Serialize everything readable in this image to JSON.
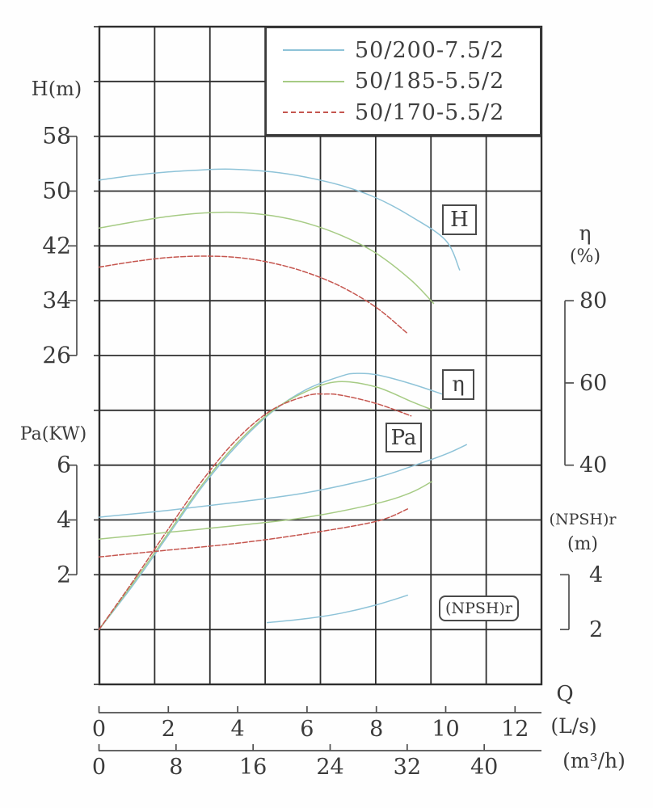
{
  "legend": {
    "items": [
      {
        "label": "50/200-7.5/2",
        "color": "#8ec3d8",
        "style": "solid"
      },
      {
        "label": "50/185-5.5/2",
        "color": "#a6cb84",
        "style": "solid"
      },
      {
        "label": "50/170-5.5/2",
        "color": "#c5564f",
        "style": "dashed"
      }
    ]
  },
  "axes": {
    "h": {
      "title": "H(m)",
      "ticks": [
        58,
        50,
        42,
        34,
        26
      ]
    },
    "pa": {
      "title": "Pa(KW)",
      "ticks": [
        6,
        4,
        2
      ]
    },
    "eta": {
      "title": "η",
      "unit": "(%)",
      "ticks": [
        80,
        60,
        40
      ]
    },
    "npsh": {
      "title": "(NPSH)r",
      "unit": "(m)",
      "ticks": [
        4,
        2
      ]
    },
    "q": {
      "title": "Q",
      "unit": "(L/s)",
      "ticks": [
        0,
        2,
        4,
        6,
        8,
        10,
        12
      ]
    },
    "q2": {
      "unit": "(m³/h)",
      "ticks": [
        0,
        8,
        16,
        24,
        32,
        40
      ]
    }
  },
  "annotations": {
    "h": "H",
    "eta": "η",
    "pa": "Pa",
    "npsh": "(NPSH)r"
  },
  "chart_data": {
    "type": "line",
    "x": {
      "label": "Q (L/s)",
      "range": [
        0,
        12.75
      ]
    },
    "secondary_x": {
      "label": "Q (m³/h)",
      "range": [
        0,
        45.9
      ]
    },
    "grid": true,
    "families": {
      "H": {
        "unit": "m",
        "axis_ticks": [
          58,
          50,
          42,
          34,
          26
        ]
      },
      "eta": {
        "unit": "%",
        "axis_ticks": [
          80,
          60,
          40
        ]
      },
      "Pa": {
        "unit": "KW",
        "axis_ticks": [
          6,
          4,
          2
        ]
      },
      "npsh": {
        "unit": "m",
        "axis_ticks": [
          4,
          2
        ]
      }
    },
    "series": [
      {
        "family": "H",
        "pump": "50/200-7.5/2",
        "color": "#8ec3d8",
        "dash": false,
        "points": [
          [
            0,
            51.6
          ],
          [
            1,
            52.3
          ],
          [
            2,
            52.8
          ],
          [
            3,
            53.1
          ],
          [
            3.8,
            53.2
          ],
          [
            5,
            52.8
          ],
          [
            6,
            52.0
          ],
          [
            7,
            50.8
          ],
          [
            8,
            49.0
          ],
          [
            9,
            46.3
          ],
          [
            10,
            42.8
          ],
          [
            10.4,
            38.5
          ]
        ]
      },
      {
        "family": "H",
        "pump": "50/185-5.5/2",
        "color": "#a6cb84",
        "dash": false,
        "points": [
          [
            0,
            44.6
          ],
          [
            1,
            45.5
          ],
          [
            2,
            46.3
          ],
          [
            3,
            46.8
          ],
          [
            3.9,
            46.9
          ],
          [
            5,
            46.4
          ],
          [
            6,
            45.3
          ],
          [
            7,
            43.5
          ],
          [
            8,
            40.9
          ],
          [
            9,
            37.0
          ],
          [
            9.65,
            33.6
          ]
        ]
      },
      {
        "family": "H",
        "pump": "50/170-5.5/2",
        "color": "#c5564f",
        "dash": true,
        "points": [
          [
            0,
            38.9
          ],
          [
            1,
            39.7
          ],
          [
            2,
            40.3
          ],
          [
            3,
            40.5
          ],
          [
            4,
            40.3
          ],
          [
            5,
            39.5
          ],
          [
            6,
            38.1
          ],
          [
            7,
            36.0
          ],
          [
            8,
            33.0
          ],
          [
            8.9,
            29.2
          ]
        ]
      },
      {
        "family": "eta",
        "pump": "50/200-7.5/2",
        "color": "#8ec3d8",
        "dash": false,
        "points": [
          [
            0,
            0
          ],
          [
            1,
            11
          ],
          [
            2,
            23
          ],
          [
            3,
            35
          ],
          [
            4,
            45
          ],
          [
            5,
            53
          ],
          [
            6,
            58.5
          ],
          [
            7,
            61.7
          ],
          [
            7.4,
            62.3
          ],
          [
            8,
            62.0
          ],
          [
            9,
            59.8
          ],
          [
            10,
            57.0
          ],
          [
            10.2,
            56.5
          ]
        ]
      },
      {
        "family": "eta",
        "pump": "50/185-5.5/2",
        "color": "#a6cb84",
        "dash": false,
        "points": [
          [
            0,
            0
          ],
          [
            1,
            11.5
          ],
          [
            2,
            23.5
          ],
          [
            3,
            35.5
          ],
          [
            4,
            45.5
          ],
          [
            5,
            53.2
          ],
          [
            6,
            58.0
          ],
          [
            6.9,
            60.3
          ],
          [
            8,
            59.0
          ],
          [
            9,
            55.5
          ],
          [
            9.6,
            53.5
          ]
        ]
      },
      {
        "family": "eta",
        "pump": "50/170-5.5/2",
        "color": "#c5564f",
        "dash": true,
        "points": [
          [
            0,
            0
          ],
          [
            1,
            12
          ],
          [
            2,
            24.5
          ],
          [
            3,
            36.5
          ],
          [
            4,
            46.5
          ],
          [
            5,
            53.5
          ],
          [
            6,
            56.9
          ],
          [
            6.5,
            57.3
          ],
          [
            7,
            57.0
          ],
          [
            8,
            55.0
          ],
          [
            9,
            52.0
          ]
        ]
      },
      {
        "family": "Pa",
        "pump": "50/200-7.5/2",
        "color": "#8ec3d8",
        "dash": false,
        "points": [
          [
            0,
            4.1
          ],
          [
            2,
            4.35
          ],
          [
            4,
            4.65
          ],
          [
            6,
            5.0
          ],
          [
            8,
            5.55
          ],
          [
            9,
            5.95
          ],
          [
            10,
            6.4
          ],
          [
            10.6,
            6.75
          ]
        ]
      },
      {
        "family": "Pa",
        "pump": "50/185-5.5/2",
        "color": "#a6cb84",
        "dash": false,
        "points": [
          [
            0,
            3.3
          ],
          [
            2,
            3.55
          ],
          [
            4,
            3.8
          ],
          [
            6,
            4.1
          ],
          [
            8,
            4.6
          ],
          [
            9,
            5.0
          ],
          [
            9.6,
            5.4
          ]
        ]
      },
      {
        "family": "Pa",
        "pump": "50/170-5.5/2",
        "color": "#c5564f",
        "dash": true,
        "points": [
          [
            0,
            2.65
          ],
          [
            2,
            2.9
          ],
          [
            4,
            3.15
          ],
          [
            6,
            3.5
          ],
          [
            8,
            3.95
          ],
          [
            8.9,
            4.4
          ]
        ]
      },
      {
        "family": "npsh",
        "pump": "50/200-7.5/2",
        "color": "#8ec3d8",
        "dash": false,
        "points": [
          [
            4.85,
            2.25
          ],
          [
            6,
            2.4
          ],
          [
            7,
            2.6
          ],
          [
            8,
            2.9
          ],
          [
            8.9,
            3.25
          ]
        ]
      }
    ]
  }
}
